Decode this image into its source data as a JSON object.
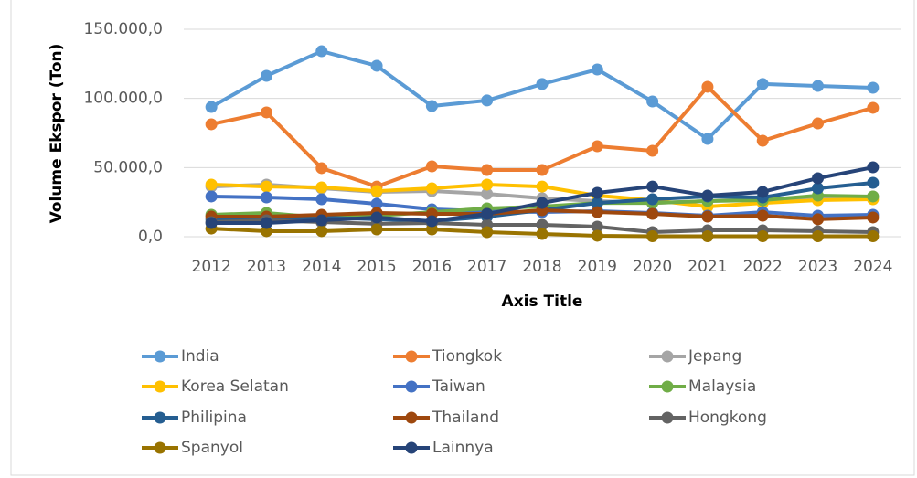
{
  "chart_data": {
    "type": "line",
    "y_label": "Volume Ekspor (Ton)",
    "x_label": "Axis Title",
    "categories": [
      "2012",
      "2013",
      "2014",
      "2015",
      "2016",
      "2017",
      "2018",
      "2019",
      "2020",
      "2021",
      "2022",
      "2023",
      "2024"
    ],
    "ylim": [
      0,
      150000
    ],
    "yticks": [
      {
        "value": 0,
        "label": "0,0"
      },
      {
        "value": 50000,
        "label": "50.000,0"
      },
      {
        "value": 100000,
        "label": "100.000,0"
      },
      {
        "value": 150000,
        "label": "150.000,0"
      }
    ],
    "grid": true,
    "legend": "bottom",
    "series": [
      {
        "name": "India",
        "color": "#5b9bd5",
        "values": [
          93800,
          116300,
          134100,
          123600,
          94500,
          98500,
          110400,
          120900,
          97800,
          70700,
          110400,
          109000,
          107700
        ]
      },
      {
        "name": "Tiongkok",
        "color": "#ed7d31",
        "values": [
          81300,
          89900,
          49600,
          36300,
          50900,
          48200,
          48200,
          65400,
          62100,
          108400,
          69400,
          81900,
          93200
        ]
      },
      {
        "name": "Jepang",
        "color": "#a5a5a5",
        "values": [
          36300,
          37700,
          35000,
          32400,
          33000,
          31000,
          27800,
          25800,
          24400,
          25800,
          27100,
          27100,
          29100
        ]
      },
      {
        "name": "Korea Selatan",
        "color": "#ffc000",
        "values": [
          37700,
          36300,
          35700,
          33000,
          35000,
          37700,
          36300,
          29700,
          26400,
          21800,
          24400,
          26400,
          27100
        ]
      },
      {
        "name": "Taiwan",
        "color": "#4472c4",
        "values": [
          29100,
          28400,
          27100,
          23800,
          19800,
          18500,
          17800,
          18500,
          17200,
          15200,
          17800,
          15200,
          15900
        ]
      },
      {
        "name": "Malaysia",
        "color": "#70ad47",
        "values": [
          15900,
          17200,
          13900,
          15200,
          17800,
          20500,
          21800,
          24400,
          24400,
          25800,
          26400,
          29700,
          29100
        ]
      },
      {
        "name": "Philipina",
        "color": "#255e91",
        "values": [
          12600,
          13200,
          13900,
          12600,
          11200,
          14500,
          19200,
          24400,
          27100,
          29100,
          28400,
          35000,
          39000
        ]
      },
      {
        "name": "Thailand",
        "color": "#9e480e",
        "values": [
          14500,
          14500,
          15900,
          17200,
          16500,
          16500,
          19200,
          17800,
          16500,
          14500,
          15200,
          12600,
          13900
        ]
      },
      {
        "name": "Hongkong",
        "color": "#636363",
        "values": [
          10600,
          11900,
          10600,
          9300,
          9900,
          8600,
          8600,
          7300,
          3300,
          4600,
          4600,
          4000,
          3300
        ]
      },
      {
        "name": "Spanyol",
        "color": "#997300",
        "values": [
          5900,
          4000,
          4000,
          5300,
          5300,
          3300,
          2000,
          700,
          300,
          300,
          300,
          300,
          300
        ]
      },
      {
        "name": "Lainnya",
        "color": "#264478",
        "values": [
          9900,
          9900,
          11900,
          13900,
          11200,
          16500,
          24400,
          31700,
          36300,
          29700,
          32400,
          42300,
          50200
        ]
      }
    ]
  }
}
